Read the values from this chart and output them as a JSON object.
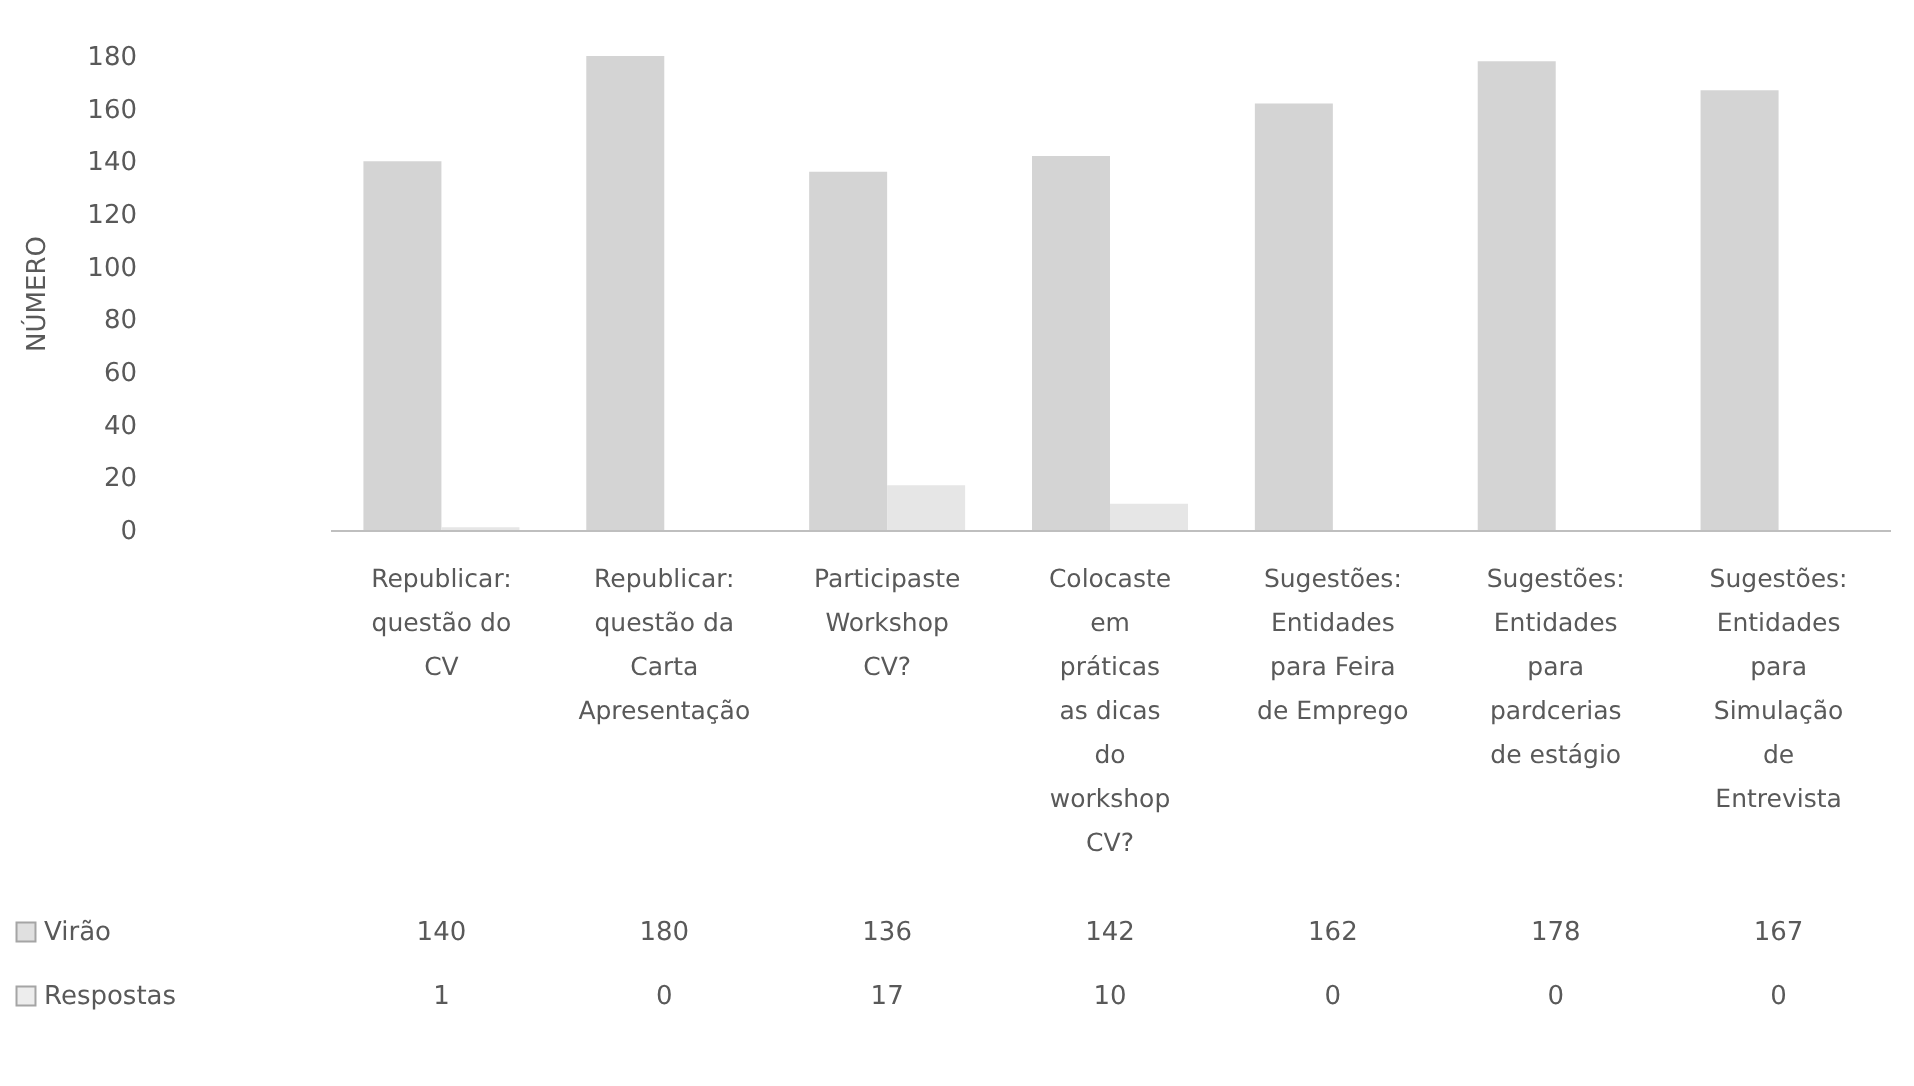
{
  "chart_data": {
    "type": "bar",
    "ylabel": "NÚMERO",
    "categories": [
      "Republicar: questão do CV",
      "Republicar: questão da Carta Apresentação",
      "Participaste Workshop CV?",
      "Colocaste em práticas as dicas do workshop CV?",
      "Sugestões: Entidades para Feira de Emprego",
      "Sugestões: Entidades para pardcerias de estágio",
      "Sugestões: Entidades para Simulação de Entrevista"
    ],
    "series": [
      {
        "name": "Virão",
        "color": "#d4d4d4",
        "values": [
          140,
          180,
          136,
          142,
          162,
          178,
          167
        ]
      },
      {
        "name": "Respostas",
        "color": "#e6e6e6",
        "values": [
          1,
          0,
          17,
          10,
          0,
          0,
          0
        ]
      }
    ],
    "ylim": [
      0,
      180
    ],
    "yticks": [
      0,
      20,
      40,
      60,
      80,
      100,
      120,
      140,
      160,
      180
    ],
    "grid": false,
    "legend": "bottom left",
    "data_labels": true
  }
}
